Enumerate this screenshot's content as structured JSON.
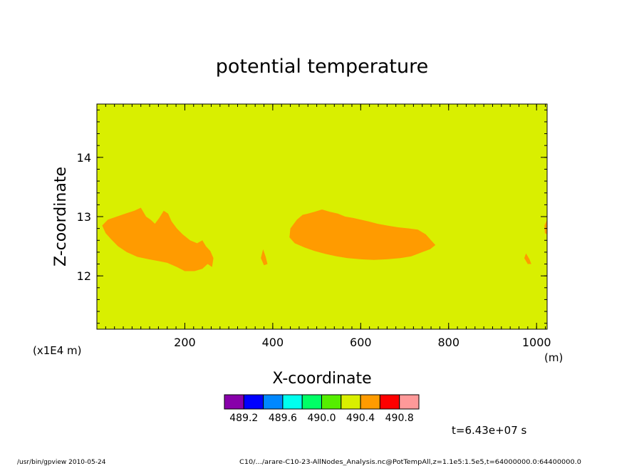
{
  "chart_data": {
    "type": "heatmap",
    "title": "potential temperature",
    "xlabel": "X-coordinate",
    "ylabel": "Z-coordinate",
    "x_unit": "(m)",
    "y_unit": "(x1E4 m)",
    "xlim": [
      0,
      1024
    ],
    "ylim": [
      11.1,
      14.9
    ],
    "x_ticks": [
      200,
      400,
      600,
      800,
      1000
    ],
    "y_ticks": [
      12,
      13,
      14
    ],
    "background_level": {
      "range": [
        490.2,
        490.4
      ],
      "color": "#d9ef00"
    },
    "regions": [
      {
        "name": "",
        "level_range": [
          490.4,
          490.6
        ],
        "color": "#ff9b00",
        "outline": [
          [
            12,
            12.85
          ],
          [
            25,
            12.95
          ],
          [
            45,
            13.0
          ],
          [
            65,
            13.05
          ],
          [
            85,
            13.1
          ],
          [
            100,
            13.15
          ],
          [
            112,
            13.0
          ],
          [
            122,
            12.95
          ],
          [
            132,
            12.88
          ],
          [
            142,
            12.98
          ],
          [
            152,
            13.1
          ],
          [
            162,
            13.05
          ],
          [
            170,
            12.92
          ],
          [
            182,
            12.8
          ],
          [
            195,
            12.7
          ],
          [
            212,
            12.6
          ],
          [
            228,
            12.55
          ],
          [
            240,
            12.6
          ],
          [
            248,
            12.5
          ],
          [
            258,
            12.42
          ],
          [
            265,
            12.3
          ],
          [
            262,
            12.15
          ],
          [
            252,
            12.2
          ],
          [
            240,
            12.12
          ],
          [
            222,
            12.08
          ],
          [
            200,
            12.08
          ],
          [
            182,
            12.15
          ],
          [
            160,
            12.22
          ],
          [
            140,
            12.25
          ],
          [
            118,
            12.28
          ],
          [
            92,
            12.32
          ],
          [
            68,
            12.4
          ],
          [
            48,
            12.5
          ],
          [
            32,
            12.62
          ],
          [
            20,
            12.72
          ]
        ]
      },
      {
        "name": "",
        "level_range": [
          490.4,
          490.6
        ],
        "color": "#ff9b00",
        "outline": [
          [
            440,
            12.8
          ],
          [
            455,
            12.95
          ],
          [
            468,
            13.03
          ],
          [
            480,
            13.05
          ],
          [
            495,
            13.08
          ],
          [
            512,
            13.12
          ],
          [
            530,
            13.08
          ],
          [
            548,
            13.05
          ],
          [
            565,
            13.0
          ],
          [
            582,
            12.98
          ],
          [
            600,
            12.95
          ],
          [
            618,
            12.92
          ],
          [
            638,
            12.88
          ],
          [
            660,
            12.85
          ],
          [
            685,
            12.82
          ],
          [
            710,
            12.8
          ],
          [
            730,
            12.78
          ],
          [
            748,
            12.7
          ],
          [
            760,
            12.6
          ],
          [
            770,
            12.52
          ],
          [
            758,
            12.45
          ],
          [
            740,
            12.4
          ],
          [
            715,
            12.33
          ],
          [
            690,
            12.3
          ],
          [
            660,
            12.28
          ],
          [
            630,
            12.27
          ],
          [
            600,
            12.28
          ],
          [
            570,
            12.3
          ],
          [
            545,
            12.33
          ],
          [
            520,
            12.37
          ],
          [
            495,
            12.42
          ],
          [
            472,
            12.48
          ],
          [
            450,
            12.55
          ],
          [
            438,
            12.65
          ]
        ]
      },
      {
        "name": "",
        "level_range": [
          490.4,
          490.6
        ],
        "color": "#ff9b00",
        "outline": [
          [
            378,
            12.45
          ],
          [
            384,
            12.32
          ],
          [
            388,
            12.2
          ],
          [
            380,
            12.18
          ],
          [
            373,
            12.3
          ]
        ]
      },
      {
        "name": "",
        "level_range": [
          490.4,
          490.6
        ],
        "color": "#ff9b00",
        "outline": [
          [
            976,
            12.38
          ],
          [
            984,
            12.28
          ],
          [
            988,
            12.2
          ],
          [
            980,
            12.2
          ],
          [
            972,
            12.3
          ]
        ]
      },
      {
        "name": "",
        "level_range": [
          490.4,
          490.6
        ],
        "color": "#ff9b00",
        "outline": [
          [
            1018,
            12.85
          ],
          [
            1024,
            12.95
          ],
          [
            1024,
            12.7
          ],
          [
            1019,
            12.72
          ]
        ]
      }
    ],
    "colorbar": {
      "colors": [
        "#8800aa",
        "#0000ff",
        "#0088ff",
        "#00ffee",
        "#00ff66",
        "#55ee00",
        "#d9ef00",
        "#ff9b00",
        "#ff0000",
        "#ff9999"
      ],
      "labels": [
        "489.2",
        "489.6",
        "490.0",
        "490.4",
        "490.8"
      ]
    }
  },
  "annotations": {
    "time": "t=6.43e+07 s",
    "footer_left": "/usr/bin/gpview   2010-05-24",
    "footer_right": "C10/.../arare-C10-23-AllNodes_Analysis.nc@PotTempAll,z=1.1e5:1.5e5,t=64000000.0:64400000.0"
  }
}
